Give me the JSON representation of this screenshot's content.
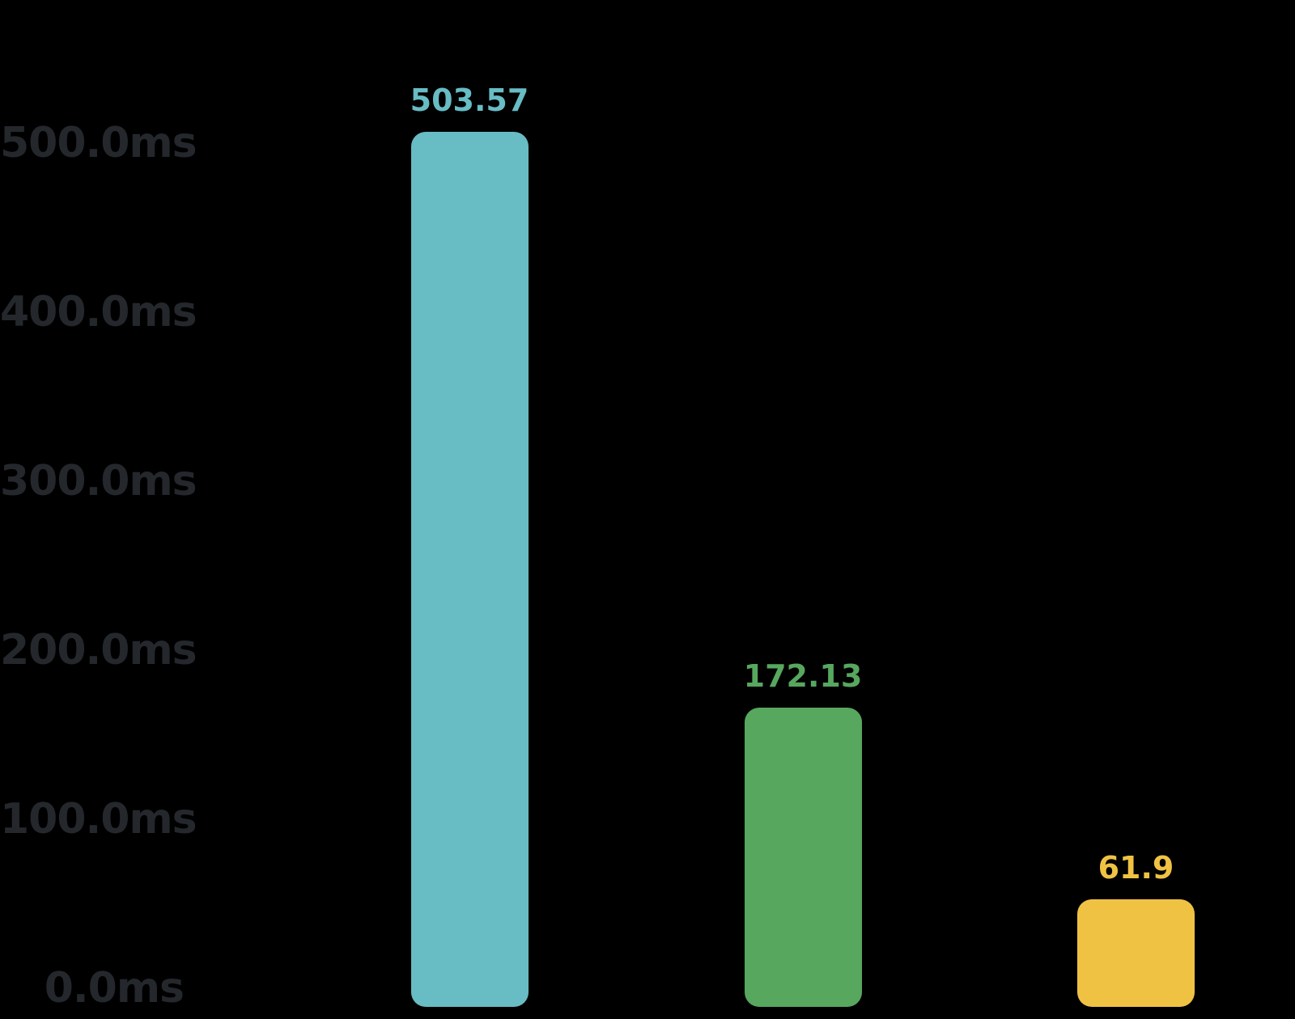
{
  "background_color": "#000000",
  "axis": {
    "tick_label_color": "#24272c",
    "unit": "ms"
  },
  "chart_data": {
    "type": "bar",
    "title": "",
    "categories": [
      "",
      "",
      ""
    ],
    "values": [
      503.57,
      172.13,
      61.9
    ],
    "bar_value_labels": [
      "503.57",
      "172.13",
      "61.9"
    ],
    "bar_colors": [
      "#68bcc4",
      "#57a75f",
      "#f0c244"
    ],
    "label_colors": [
      "#68bcc4",
      "#57a75f",
      "#f0c244"
    ],
    "xlabel": "",
    "ylabel": "",
    "ylim": [
      0,
      500
    ],
    "ytick_labels": [
      "500.0ms",
      "400.0ms",
      "300.0ms",
      "200.0ms",
      "100.0ms",
      "0.0ms"
    ],
    "ytick_values": [
      500,
      400,
      300,
      200,
      100,
      0
    ],
    "grid": false,
    "legend": false
  }
}
